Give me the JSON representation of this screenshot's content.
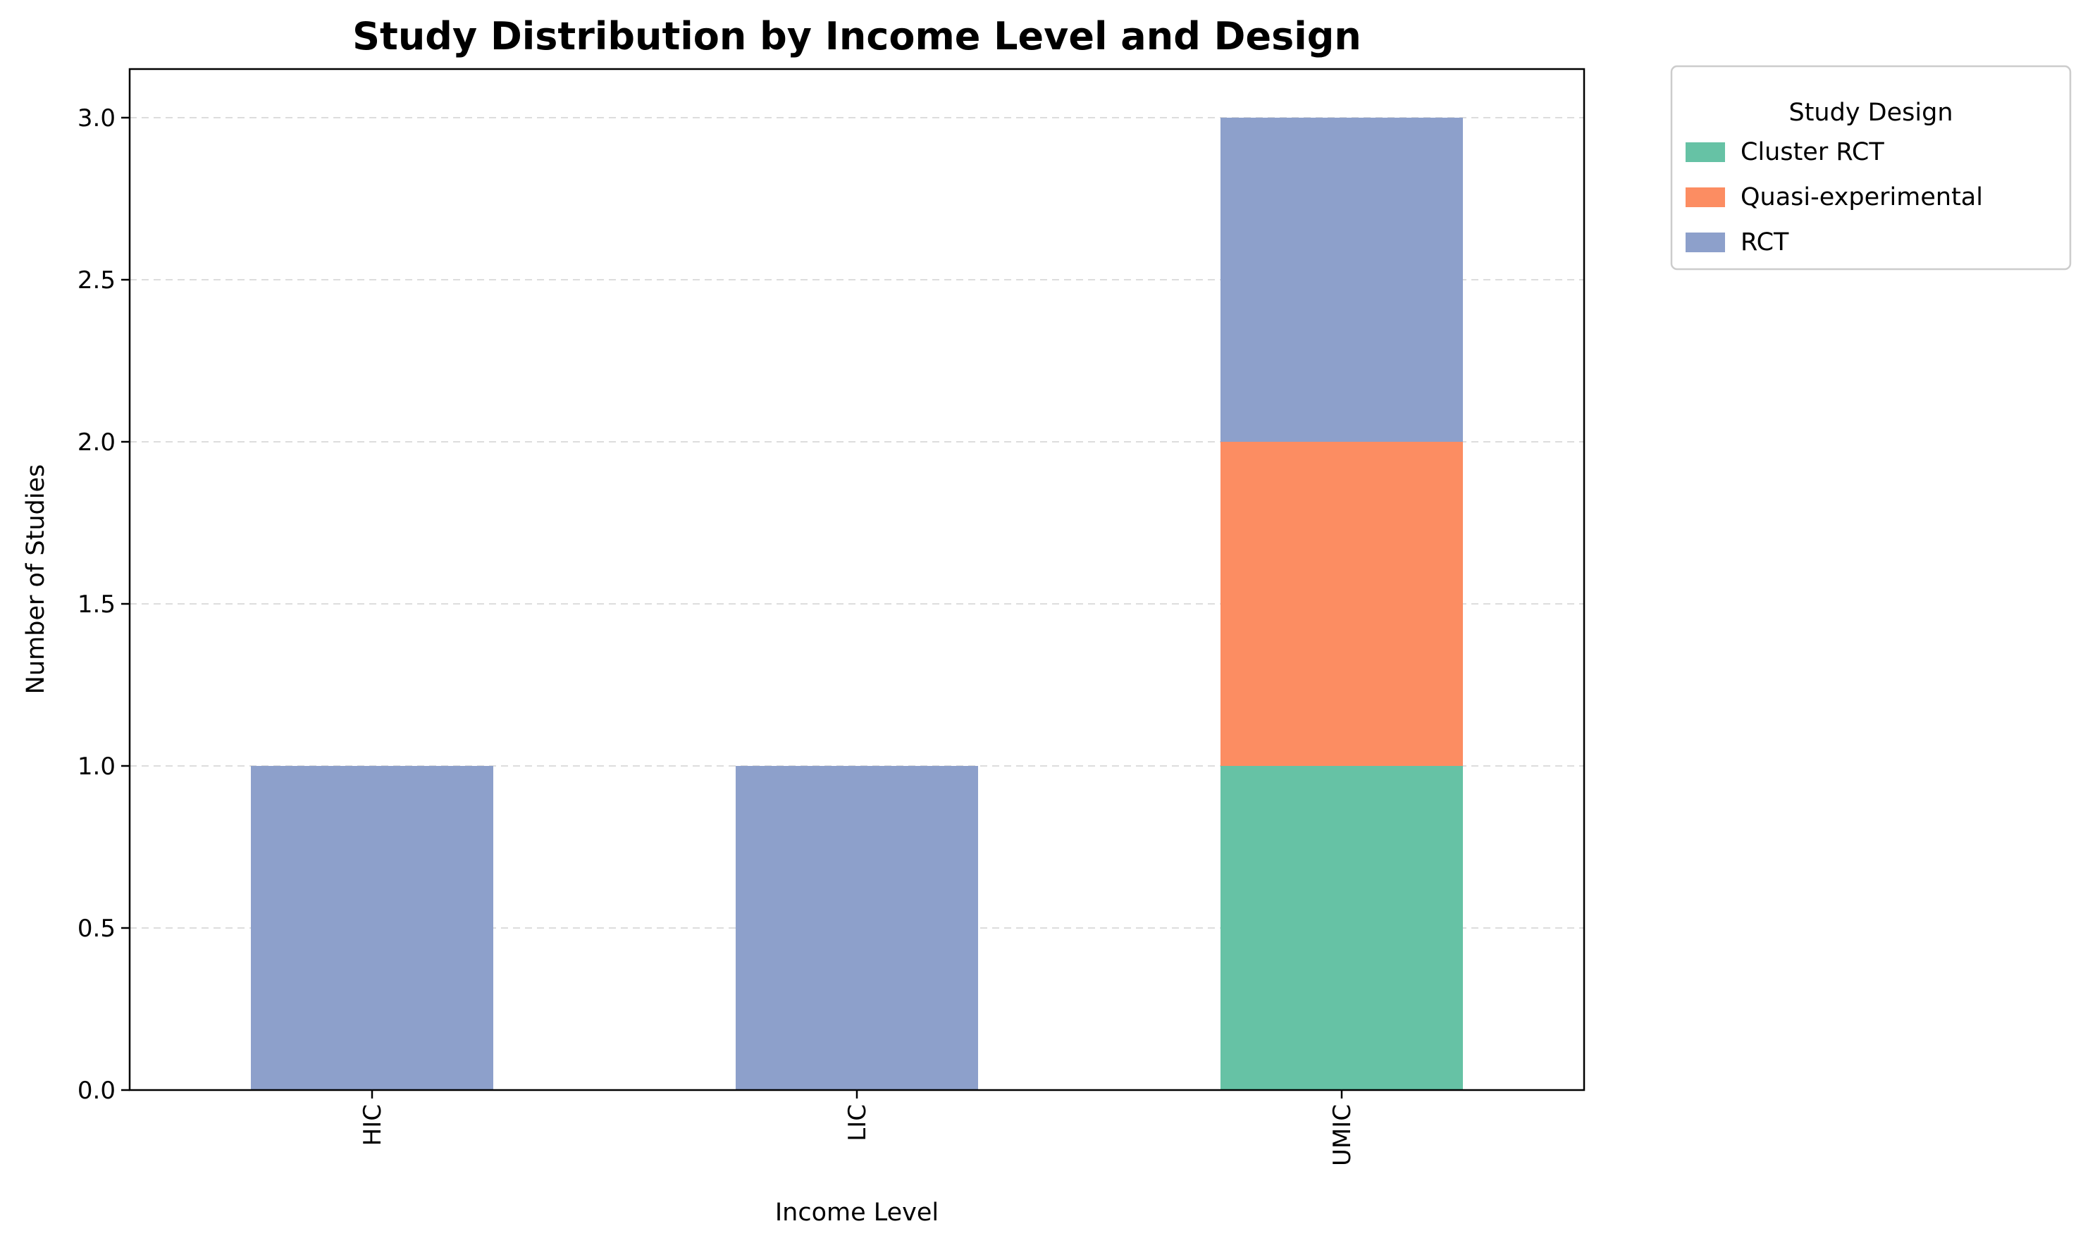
{
  "chart_data": {
    "type": "bar",
    "stacked": true,
    "title": "Study Distribution by Income Level and Design",
    "xlabel": "Income Level",
    "ylabel": "Number of Studies",
    "categories": [
      "HIC",
      "LIC",
      "UMIC"
    ],
    "series": [
      {
        "name": "Cluster RCT",
        "values": [
          0,
          0,
          1
        ],
        "color": "#66c2a5"
      },
      {
        "name": "Quasi-experimental",
        "values": [
          0,
          0,
          1
        ],
        "color": "#fc8d62"
      },
      {
        "name": "RCT",
        "values": [
          1,
          1,
          1
        ],
        "color": "#8da0cb"
      }
    ],
    "ylim": [
      0,
      3.15
    ],
    "yticks": [
      "0.0",
      "0.5",
      "1.0",
      "1.5",
      "2.0",
      "2.5",
      "3.0"
    ],
    "grid": "y-dashed",
    "legend": {
      "title": "Study Design",
      "placement": "outside-top-right"
    }
  }
}
